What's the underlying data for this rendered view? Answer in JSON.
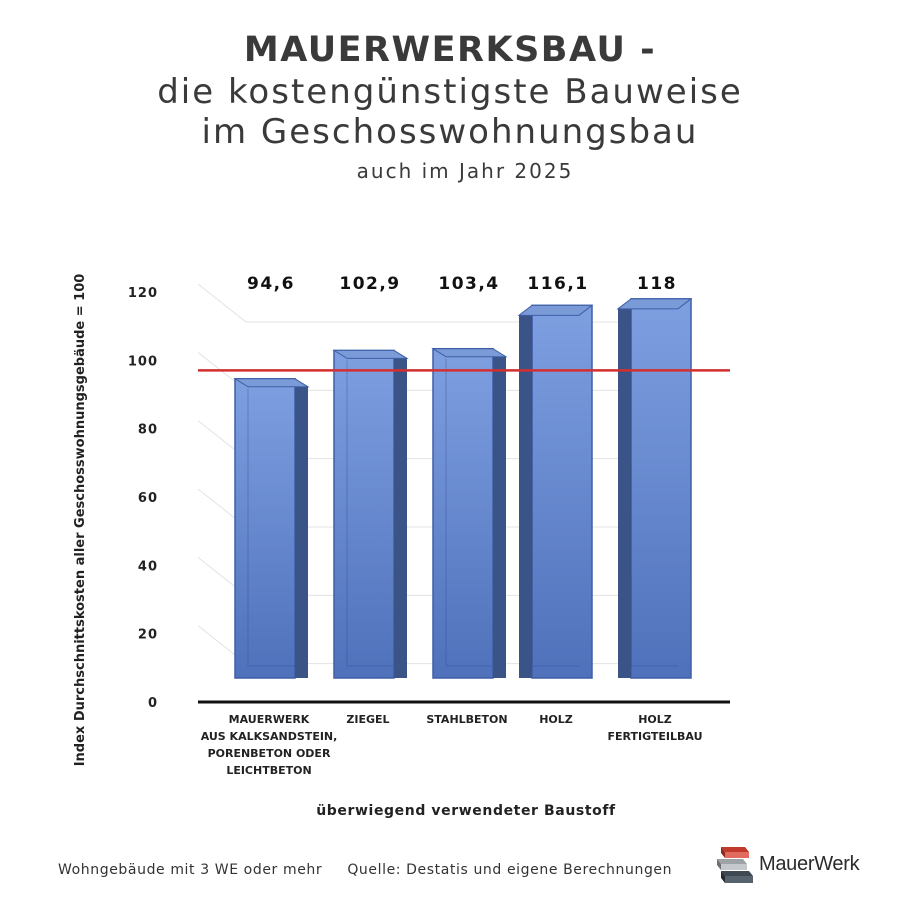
{
  "header": {
    "title": "MAUERWERKSBAU -",
    "subtitle_line1": "die kostengünstigste Bauweise",
    "subtitle_line2": "im Geschosswohnungsbau",
    "subtitle_line3": "auch im Jahr 2025"
  },
  "chart_data": {
    "type": "bar",
    "categories": [
      [
        "MAUERWERK",
        "AUS KALKSANDSTEIN,",
        "PORENBETON ODER",
        "LEICHTBETON"
      ],
      [
        "ZIEGEL"
      ],
      [
        "STAHLBETON"
      ],
      [
        "HOLZ"
      ],
      [
        "HOLZ",
        "FERTIGTEILBAU"
      ]
    ],
    "values": [
      94.6,
      102.9,
      103.4,
      116.1,
      118
    ],
    "value_labels": [
      "94,6",
      "102,9",
      "103,4",
      "116,1",
      "118"
    ],
    "xlabel": "überwiegend verwendeter Baustoff",
    "ylabel": "Index Durchschnittskosten aller Geschosswohnungsgebäude = 100",
    "ylim": [
      0,
      120
    ],
    "yticks": [
      "0",
      "20",
      "40",
      "60",
      "80",
      "100",
      "120"
    ],
    "reference_line": 100,
    "grid": true,
    "colors": {
      "bar_front": "#5b7fc8",
      "bar_side": "#3b5488",
      "bar_top": "#7a9ad8",
      "reference": "#d32f2f",
      "axis": "#111111",
      "grid": "#e3e3e3"
    }
  },
  "footer": {
    "note": "Wohngebäude mit 3 WE oder mehr",
    "source": "Quelle: Destatis und eigene Berechnungen"
  },
  "logo": {
    "text": "MauerWerk",
    "icon": "brick-stack-icon"
  }
}
